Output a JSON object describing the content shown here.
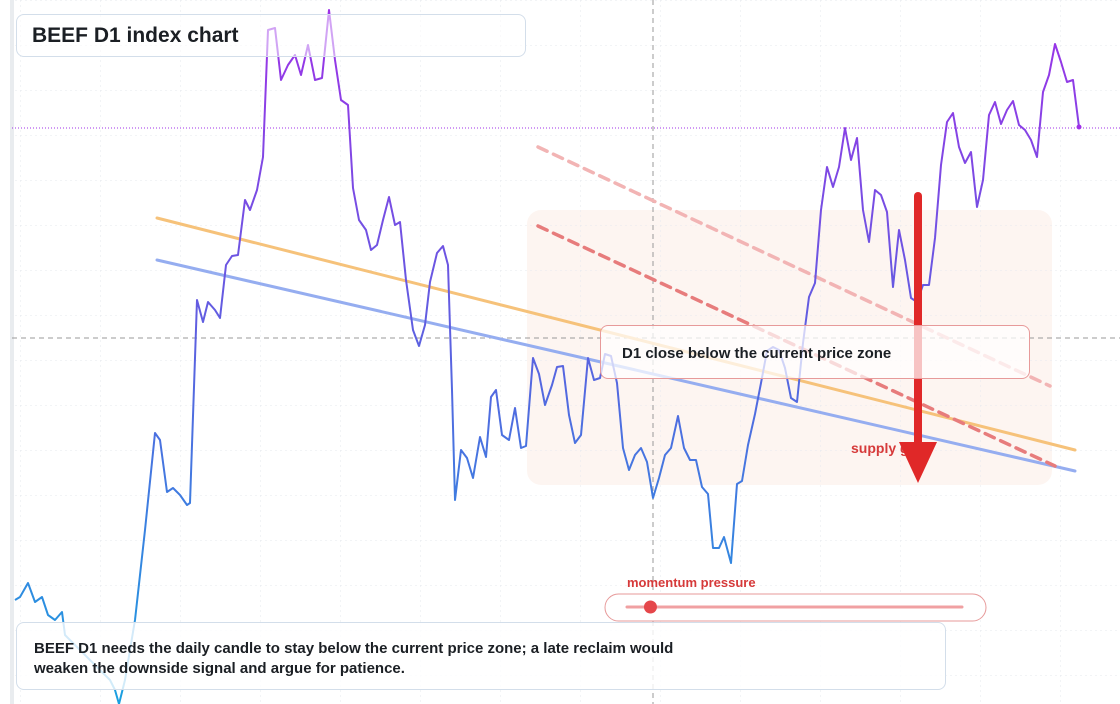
{
  "chart_data": {
    "type": "line",
    "title": "BEEF D1 index chart",
    "xlim": [
      0,
      1108
    ],
    "ylim": [
      0,
      70.4
    ],
    "grid": true,
    "gradient_colors": [
      "#1aa0e0",
      "#5a62e0",
      "#a030e8"
    ],
    "x": [
      3,
      8,
      16,
      23,
      30,
      36,
      43,
      50,
      53,
      98,
      103,
      107,
      113,
      123,
      133,
      143,
      148,
      155,
      161,
      168,
      175,
      178,
      185,
      191,
      196,
      203,
      208,
      214,
      220,
      226,
      233,
      238,
      245,
      251,
      256,
      263,
      269,
      276,
      283,
      289,
      296,
      303,
      310,
      317,
      323,
      329,
      336,
      341,
      347,
      354,
      359,
      365,
      371,
      377,
      383,
      388,
      394,
      401,
      407,
      413,
      418,
      425,
      431,
      436,
      440,
      443,
      449,
      455,
      461,
      468,
      474,
      479,
      484,
      490,
      497,
      503,
      509,
      514,
      521,
      527,
      533,
      540,
      545,
      551,
      557,
      563,
      569,
      576,
      582,
      588,
      593,
      599,
      605,
      611,
      617,
      623,
      629,
      635,
      641,
      647,
      653,
      659,
      666,
      672,
      678,
      684,
      690,
      696,
      701,
      707,
      712,
      719,
      725,
      730,
      736,
      743,
      749,
      755,
      761,
      767,
      773,
      779,
      785,
      791,
      797,
      803,
      809,
      815,
      821,
      827,
      833,
      839,
      845,
      851,
      857,
      863,
      869,
      875,
      881,
      887,
      893,
      899,
      905,
      911,
      917,
      923,
      929,
      935,
      941,
      947,
      953,
      959,
      965,
      971,
      977,
      983,
      989,
      995,
      1001,
      1007,
      1013,
      1019,
      1025,
      1031,
      1037,
      1043,
      1049,
      1055,
      1061,
      1067
    ],
    "values": [
      10.4,
      10.7,
      12.1,
      10.2,
      10.7,
      8.9,
      8.4,
      9.2,
      6.9,
      2.4,
      1.4,
      0,
      2.4,
      8.4,
      17.4,
      27.1,
      26.4,
      21.2,
      21.6,
      20.9,
      19.9,
      20.1,
      40.4,
      38.2,
      40.2,
      39.4,
      38.6,
      43.9,
      44.8,
      44.9,
      50.4,
      49.4,
      51.4,
      54.7,
      67.4,
      67.6,
      62.4,
      63.9,
      64.9,
      62.9,
      65.9,
      62.4,
      62.6,
      69.4,
      64.4,
      60.4,
      59.9,
      51.6,
      48.4,
      47.4,
      45.4,
      45.9,
      48.4,
      50.7,
      47.9,
      48.2,
      42.4,
      37.4,
      35.8,
      37.9,
      42.2,
      45.1,
      45.8,
      43.9,
      31.4,
      20.4,
      25.4,
      24.6,
      22.6,
      26.7,
      24.7,
      30.7,
      31.4,
      26.9,
      26.4,
      29.6,
      25.6,
      25.8,
      34.6,
      33.0,
      29.9,
      31.9,
      33.7,
      33.8,
      28.9,
      26.1,
      26.9,
      34.6,
      32.4,
      32.6,
      35.0,
      34.8,
      32.1,
      25.6,
      23.4,
      24.9,
      25.6,
      24.2,
      20.6,
      22.6,
      24.9,
      25.6,
      28.8,
      25.6,
      24.4,
      24.4,
      21.7,
      21.0,
      15.6,
      15.6,
      16.7,
      14.1,
      22.0,
      22.3,
      25.9,
      29.0,
      32.1,
      35.3,
      35.7,
      35.4,
      33.6,
      30.6,
      30.2,
      36.1,
      40.7,
      42.1,
      49.4,
      53.7,
      51.7,
      53.7,
      57.6,
      54.4,
      56.6,
      49.4,
      46.2,
      51.4,
      50.9,
      49.2,
      41.7,
      47.4,
      44.4,
      40.6,
      40.2,
      41.9,
      41.9,
      46.6,
      53.9,
      58.2,
      59.1,
      55.7,
      54.1,
      55.2,
      49.7,
      52.4,
      58.9,
      60.2,
      58.0,
      59.4,
      60.3,
      57.9,
      57.4,
      56.4,
      54.7,
      61.2,
      62.9,
      66.0,
      64.2,
      62.2,
      62.4,
      57.7
    ],
    "current_price": {
      "value": 57.6,
      "color": "#a030e8"
    },
    "crosshair": {
      "x": 641,
      "y": 36.6,
      "color": "#999999"
    },
    "trendlines": [
      {
        "x": [
          145,
          1063
        ],
        "y": [
          48.6,
          25.4
        ],
        "color": "#f6c27a",
        "dashed": false
      },
      {
        "x": [
          145,
          1063
        ],
        "y": [
          44.4,
          23.3
        ],
        "color": "#95adf0",
        "dashed": false
      },
      {
        "x": [
          526,
          1038
        ],
        "y": [
          55.7,
          31.8
        ],
        "color": "#f2b4b4",
        "dashed": true
      },
      {
        "x": [
          526,
          1043
        ],
        "y": [
          47.8,
          23.8
        ],
        "color": "#e77c7c",
        "dashed": true
      }
    ],
    "zone": {
      "x": [
        515,
        1040
      ],
      "y": [
        21.9,
        49.4
      ],
      "color": "#fdf3ee"
    },
    "signal_arrow": {
      "x": 906,
      "y": [
        50.8,
        22.1
      ],
      "color": "#e02828"
    },
    "callout": "D1 close below the current price zone",
    "zone_label": "supply gate",
    "gauge": {
      "label": "momentum pressure",
      "value": 7,
      "range": [
        0,
        100
      ],
      "color": "#e5464a"
    },
    "note": "BEEF D1 needs the daily candle to stay below the current price zone; a late reclaim would weaken the downside signal and argue for patience."
  }
}
